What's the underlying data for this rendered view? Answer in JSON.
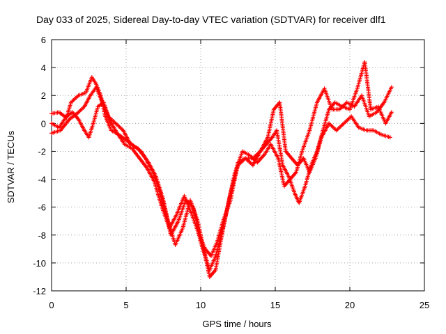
{
  "chart_data": {
    "type": "scatter",
    "title": "Day 033 of 2025, Sidereal Day-to-day VTEC variation (SDTVAR) for receiver dlf1",
    "xlabel": "GPS time / hours",
    "ylabel": "SDTVAR / TECUs",
    "xlim": [
      0,
      25
    ],
    "ylim": [
      -12,
      6
    ],
    "xticks": [
      "0",
      "5",
      "10",
      "15",
      "20",
      "25"
    ],
    "yticks": [
      "-12",
      "-10",
      "-8",
      "-6",
      "-4",
      "-2",
      "0",
      "2",
      "4",
      "6"
    ],
    "grid": true,
    "marker": "plus",
    "color": "#ff0000",
    "series": [
      {
        "x": [
          0,
          0.5,
          1.0,
          1.3,
          1.8,
          2.3,
          2.7,
          3.0,
          3.3,
          3.6,
          4.0,
          4.5,
          5.0,
          5.5,
          6.0,
          6.5,
          7.0,
          7.5,
          8.0,
          8.5,
          9.0,
          9.5,
          10.0,
          10.3,
          10.6,
          11.0,
          11.4,
          11.8,
          12.3,
          12.8,
          13.3,
          13.8,
          14.3,
          14.7,
          15.2,
          15.6,
          16.0,
          16.4,
          16.8,
          17.3,
          17.8,
          18.3,
          18.8,
          19.3,
          19.8,
          20.3,
          20.8,
          21.3,
          21.8,
          22.3,
          22.8
        ],
        "y": [
          0.7,
          0.8,
          0.4,
          1.5,
          2.0,
          2.2,
          3.3,
          2.8,
          2.0,
          0.5,
          -0.5,
          -0.8,
          -1.2,
          -1.6,
          -2.0,
          -2.8,
          -3.8,
          -5.5,
          -8.0,
          -7.0,
          -5.5,
          -6.0,
          -8.5,
          -9.5,
          -10.5,
          -9.5,
          -8.0,
          -6.0,
          -3.5,
          -2.0,
          -2.3,
          -2.8,
          -2.2,
          -1.5,
          -2.5,
          -4.5,
          -4.0,
          -3.5,
          -2.0,
          -0.5,
          1.5,
          2.5,
          1.0,
          1.0,
          1.5,
          1.2,
          2.0,
          0.5,
          0.8,
          1.5,
          2.6
        ]
      },
      {
        "x": [
          0,
          0.6,
          1.2,
          1.7,
          2.2,
          2.6,
          3.0,
          3.4,
          3.8,
          4.3,
          4.8,
          5.3,
          5.8,
          6.3,
          6.8,
          7.3,
          7.8,
          8.3,
          8.8,
          9.3,
          9.8,
          10.2,
          10.6,
          11.0,
          11.5,
          12.0,
          12.5,
          13.0,
          13.5,
          14.0,
          14.4,
          14.8,
          15.1,
          15.5,
          15.9,
          16.3,
          16.6,
          17.0,
          17.4,
          17.8,
          18.2,
          18.6,
          19.0,
          19.5,
          20.0,
          20.5,
          21.0,
          21.4,
          21.9,
          22.4,
          22.8
        ],
        "y": [
          -0.7,
          -0.5,
          0.3,
          0.7,
          1.2,
          2.0,
          2.6,
          1.5,
          0.5,
          0.0,
          -0.5,
          -1.5,
          -1.8,
          -2.5,
          -3.5,
          -5.0,
          -7.0,
          -8.7,
          -7.5,
          -5.5,
          -7.0,
          -9.0,
          -11.0,
          -10.5,
          -7.5,
          -5.0,
          -3.0,
          -2.5,
          -3.0,
          -2.0,
          -1.5,
          -1.0,
          -0.5,
          -3.0,
          -3.8,
          -5.0,
          -5.7,
          -4.5,
          -3.0,
          -2.0,
          -0.5,
          1.0,
          1.5,
          1.2,
          1.0,
          2.5,
          4.4,
          1.0,
          1.2,
          0.0,
          0.8
        ]
      },
      {
        "x": [
          0,
          0.5,
          1.0,
          1.4,
          1.8,
          2.2,
          2.5,
          2.8,
          3.1,
          3.5,
          3.9,
          4.4,
          4.9,
          5.4,
          5.9,
          6.4,
          6.9,
          7.4,
          7.9,
          8.4,
          8.9,
          9.4,
          9.9,
          10.3,
          10.7,
          11.1,
          11.5,
          12.0,
          12.5,
          13.0,
          13.5,
          14.0,
          14.5,
          14.9,
          15.3,
          15.7,
          16.1,
          16.5,
          16.9,
          17.3,
          17.7,
          18.1,
          18.6,
          19.1,
          19.6,
          20.1,
          20.6,
          21.1,
          21.6,
          22.1,
          22.7
        ],
        "y": [
          0.0,
          -0.3,
          0.5,
          0.8,
          0.3,
          -0.5,
          -1.0,
          0.0,
          1.2,
          1.5,
          0.2,
          -0.7,
          -1.5,
          -1.8,
          -2.5,
          -3.2,
          -4.2,
          -6.0,
          -7.5,
          -6.5,
          -5.2,
          -6.5,
          -8.0,
          -9.0,
          -9.5,
          -8.5,
          -7.0,
          -5.5,
          -2.8,
          -2.5,
          -2.5,
          -2.0,
          -1.0,
          1.0,
          1.5,
          -2.0,
          -2.5,
          -3.0,
          -2.5,
          -3.5,
          -2.5,
          -1.0,
          0.0,
          -0.5,
          0.0,
          0.5,
          -0.3,
          -0.5,
          -0.5,
          -0.8,
          -1.0
        ]
      }
    ]
  }
}
